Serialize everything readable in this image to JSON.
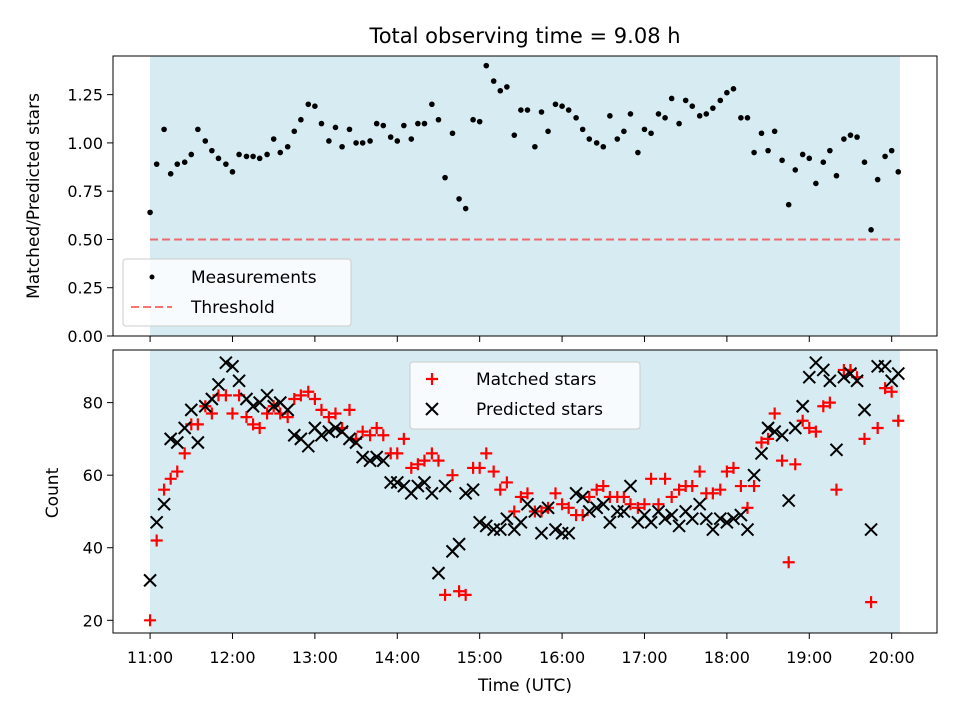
{
  "title": "Total observing time = 9.08 h",
  "colors": {
    "span": "#add8e6",
    "measurement": "#000000",
    "threshold": "#ff0000",
    "matched": "#ff0000",
    "predicted": "#000000"
  },
  "chart_data": [
    {
      "type": "scatter",
      "ylabel": "Matched/Predicted stars",
      "ylim": [
        0,
        1.45
      ],
      "xlim": [
        10.55,
        20.55
      ],
      "yticks": [
        "0.00",
        "0.25",
        "0.50",
        "0.75",
        "1.00",
        "1.25"
      ],
      "ytick_values": [
        0,
        0.25,
        0.5,
        0.75,
        1.0,
        1.25
      ],
      "shaded_span": [
        11.0,
        20.1
      ],
      "threshold": 0.5,
      "legend": {
        "position": "lower left",
        "entries": [
          "Measurements",
          "Threshold"
        ]
      },
      "series": [
        {
          "name": "Measurements",
          "x": [
            11.0,
            11.08,
            11.17,
            11.25,
            11.33,
            11.42,
            11.5,
            11.58,
            11.67,
            11.75,
            11.83,
            11.92,
            12.0,
            12.08,
            12.17,
            12.25,
            12.33,
            12.42,
            12.5,
            12.58,
            12.67,
            12.75,
            12.83,
            12.92,
            13.0,
            13.08,
            13.17,
            13.25,
            13.33,
            13.42,
            13.5,
            13.58,
            13.67,
            13.75,
            13.83,
            13.92,
            14.0,
            14.08,
            14.17,
            14.25,
            14.33,
            14.42,
            14.5,
            14.58,
            14.67,
            14.75,
            14.83,
            14.92,
            15.0,
            15.08,
            15.17,
            15.25,
            15.33,
            15.42,
            15.5,
            15.58,
            15.67,
            15.75,
            15.83,
            15.92,
            16.0,
            16.08,
            16.17,
            16.25,
            16.33,
            16.42,
            16.5,
            16.58,
            16.67,
            16.75,
            16.83,
            16.92,
            17.0,
            17.08,
            17.17,
            17.25,
            17.33,
            17.42,
            17.5,
            17.58,
            17.67,
            17.75,
            17.83,
            17.92,
            18.0,
            18.08,
            18.17,
            18.25,
            18.33,
            18.42,
            18.5,
            18.58,
            18.67,
            18.75,
            18.83,
            18.92,
            19.0,
            19.08,
            19.17,
            19.25,
            19.33,
            19.42,
            19.5,
            19.58,
            19.67,
            19.75,
            19.83,
            19.92,
            20.0,
            20.08
          ],
          "y": [
            0.64,
            0.89,
            1.07,
            0.84,
            0.89,
            0.9,
            0.94,
            1.07,
            1.01,
            0.96,
            0.92,
            0.89,
            0.85,
            0.94,
            0.93,
            0.93,
            0.92,
            0.94,
            1.02,
            0.95,
            0.98,
            1.06,
            1.12,
            1.2,
            1.19,
            1.1,
            1.01,
            1.08,
            0.98,
            1.07,
            1.0,
            1.0,
            1.01,
            1.1,
            1.09,
            1.03,
            1.01,
            1.09,
            1.02,
            1.1,
            1.1,
            1.2,
            1.12,
            0.82,
            1.05,
            0.71,
            0.66,
            1.12,
            1.11,
            1.4,
            1.32,
            1.27,
            1.29,
            1.04,
            1.17,
            1.17,
            0.98,
            1.16,
            1.06,
            1.2,
            1.19,
            1.17,
            1.13,
            1.07,
            1.02,
            1.0,
            0.98,
            1.14,
            1.02,
            1.06,
            1.15,
            0.95,
            1.07,
            1.05,
            1.15,
            1.13,
            1.23,
            1.1,
            1.22,
            1.19,
            1.14,
            1.15,
            1.18,
            1.22,
            1.26,
            1.28,
            1.13,
            1.13,
            0.95,
            1.05,
            0.96,
            1.06,
            0.91,
            0.68,
            0.86,
            0.94,
            0.92,
            0.79,
            0.9,
            0.96,
            0.83,
            1.02,
            1.04,
            1.03,
            0.9,
            0.55,
            0.81,
            0.93,
            0.96,
            0.85
          ]
        }
      ]
    },
    {
      "type": "scatter",
      "xlabel": "Time (UTC)",
      "ylabel": "Count",
      "ylim": [
        16.5,
        94.5
      ],
      "xlim": [
        10.55,
        20.55
      ],
      "yticks": [
        "20",
        "40",
        "60",
        "80"
      ],
      "ytick_values": [
        20,
        40,
        60,
        80
      ],
      "xticks": [
        "11:00",
        "12:00",
        "13:00",
        "14:00",
        "15:00",
        "16:00",
        "17:00",
        "18:00",
        "19:00",
        "20:00"
      ],
      "xtick_values": [
        11,
        12,
        13,
        14,
        15,
        16,
        17,
        18,
        19,
        20
      ],
      "shaded_span": [
        11.0,
        20.1
      ],
      "legend": {
        "position": "upper center",
        "entries": [
          "Matched stars",
          "Predicted stars"
        ]
      },
      "series": [
        {
          "name": "Matched stars",
          "x": [
            11.0,
            11.08,
            11.17,
            11.25,
            11.33,
            11.42,
            11.5,
            11.58,
            11.67,
            11.75,
            11.83,
            11.92,
            12.0,
            12.08,
            12.17,
            12.25,
            12.33,
            12.42,
            12.5,
            12.58,
            12.67,
            12.75,
            12.83,
            12.92,
            13.0,
            13.08,
            13.17,
            13.25,
            13.33,
            13.42,
            13.5,
            13.58,
            13.67,
            13.75,
            13.83,
            13.92,
            14.0,
            14.08,
            14.17,
            14.25,
            14.33,
            14.42,
            14.5,
            14.58,
            14.67,
            14.75,
            14.83,
            14.92,
            15.0,
            15.08,
            15.17,
            15.25,
            15.33,
            15.42,
            15.5,
            15.58,
            15.67,
            15.75,
            15.83,
            15.92,
            16.0,
            16.08,
            16.17,
            16.25,
            16.33,
            16.42,
            16.5,
            16.58,
            16.67,
            16.75,
            16.83,
            16.92,
            17.0,
            17.08,
            17.17,
            17.25,
            17.33,
            17.42,
            17.5,
            17.58,
            17.67,
            17.75,
            17.83,
            17.92,
            18.0,
            18.08,
            18.17,
            18.25,
            18.33,
            18.42,
            18.5,
            18.58,
            18.67,
            18.75,
            18.83,
            18.92,
            19.0,
            19.08,
            19.17,
            19.25,
            19.33,
            19.42,
            19.5,
            19.58,
            19.67,
            19.75,
            19.83,
            19.92,
            20.0,
            20.08
          ],
          "y": [
            20,
            42,
            56,
            59,
            61,
            66,
            74,
            74,
            79,
            77,
            82,
            82,
            77,
            82,
            76,
            74,
            73,
            77,
            79,
            77,
            76,
            81,
            82,
            83,
            81,
            78,
            76,
            77,
            73,
            78,
            70,
            72,
            71,
            73,
            71,
            66,
            66,
            70,
            62,
            63,
            64,
            66,
            64,
            27,
            60,
            28,
            27,
            62,
            62,
            66,
            61,
            56,
            58,
            50,
            54,
            55,
            50,
            50,
            51,
            55,
            52,
            51,
            49,
            49,
            54,
            56,
            57,
            54,
            54,
            54,
            52,
            51,
            52,
            59,
            52,
            59,
            54,
            56,
            57,
            57,
            61,
            55,
            55,
            56,
            61,
            62,
            57,
            51,
            57,
            69,
            70,
            77,
            64,
            36,
            63,
            75,
            73,
            72,
            79,
            80,
            56,
            89,
            89,
            87,
            70,
            25,
            73,
            84,
            83,
            75
          ]
        },
        {
          "name": "Predicted stars",
          "x": [
            11.0,
            11.08,
            11.17,
            11.25,
            11.33,
            11.42,
            11.5,
            11.58,
            11.67,
            11.75,
            11.83,
            11.92,
            12.0,
            12.08,
            12.17,
            12.25,
            12.33,
            12.42,
            12.5,
            12.58,
            12.67,
            12.75,
            12.83,
            12.92,
            13.0,
            13.08,
            13.17,
            13.25,
            13.33,
            13.42,
            13.5,
            13.58,
            13.67,
            13.75,
            13.83,
            13.92,
            14.0,
            14.08,
            14.17,
            14.25,
            14.33,
            14.42,
            14.5,
            14.58,
            14.67,
            14.75,
            14.83,
            14.92,
            15.0,
            15.08,
            15.17,
            15.25,
            15.33,
            15.42,
            15.5,
            15.58,
            15.67,
            15.75,
            15.83,
            15.92,
            16.0,
            16.08,
            16.17,
            16.25,
            16.33,
            16.42,
            16.5,
            16.58,
            16.67,
            16.75,
            16.83,
            16.92,
            17.0,
            17.08,
            17.17,
            17.25,
            17.33,
            17.42,
            17.5,
            17.58,
            17.67,
            17.75,
            17.83,
            17.92,
            18.0,
            18.08,
            18.17,
            18.25,
            18.33,
            18.42,
            18.5,
            18.58,
            18.67,
            18.75,
            18.83,
            18.92,
            19.0,
            19.08,
            19.17,
            19.25,
            19.33,
            19.42,
            19.5,
            19.58,
            19.67,
            19.75,
            19.83,
            19.92,
            20.0,
            20.08
          ],
          "y": [
            31,
            47,
            52,
            70,
            69,
            73,
            78,
            69,
            79,
            81,
            85,
            91,
            90,
            86,
            81,
            79,
            80,
            82,
            79,
            80,
            78,
            71,
            70,
            68,
            73,
            71,
            72,
            73,
            72,
            70,
            69,
            65,
            64,
            65,
            64,
            58,
            58,
            57,
            55,
            57,
            58,
            55,
            33,
            57,
            39,
            41,
            55,
            56,
            47,
            46,
            45,
            45,
            48,
            45,
            47,
            52,
            50,
            44,
            51,
            45,
            44,
            44,
            55,
            54,
            50,
            51,
            52,
            47,
            50,
            50,
            57,
            47,
            49,
            47,
            50,
            48,
            49,
            46,
            50,
            48,
            52,
            48,
            45,
            48,
            47,
            48,
            49,
            45,
            60,
            66,
            73,
            72,
            71,
            53,
            73,
            79,
            87,
            91,
            89,
            86,
            67,
            87,
            88,
            86,
            78,
            45,
            90,
            90,
            86,
            88
          ]
        }
      ]
    }
  ]
}
